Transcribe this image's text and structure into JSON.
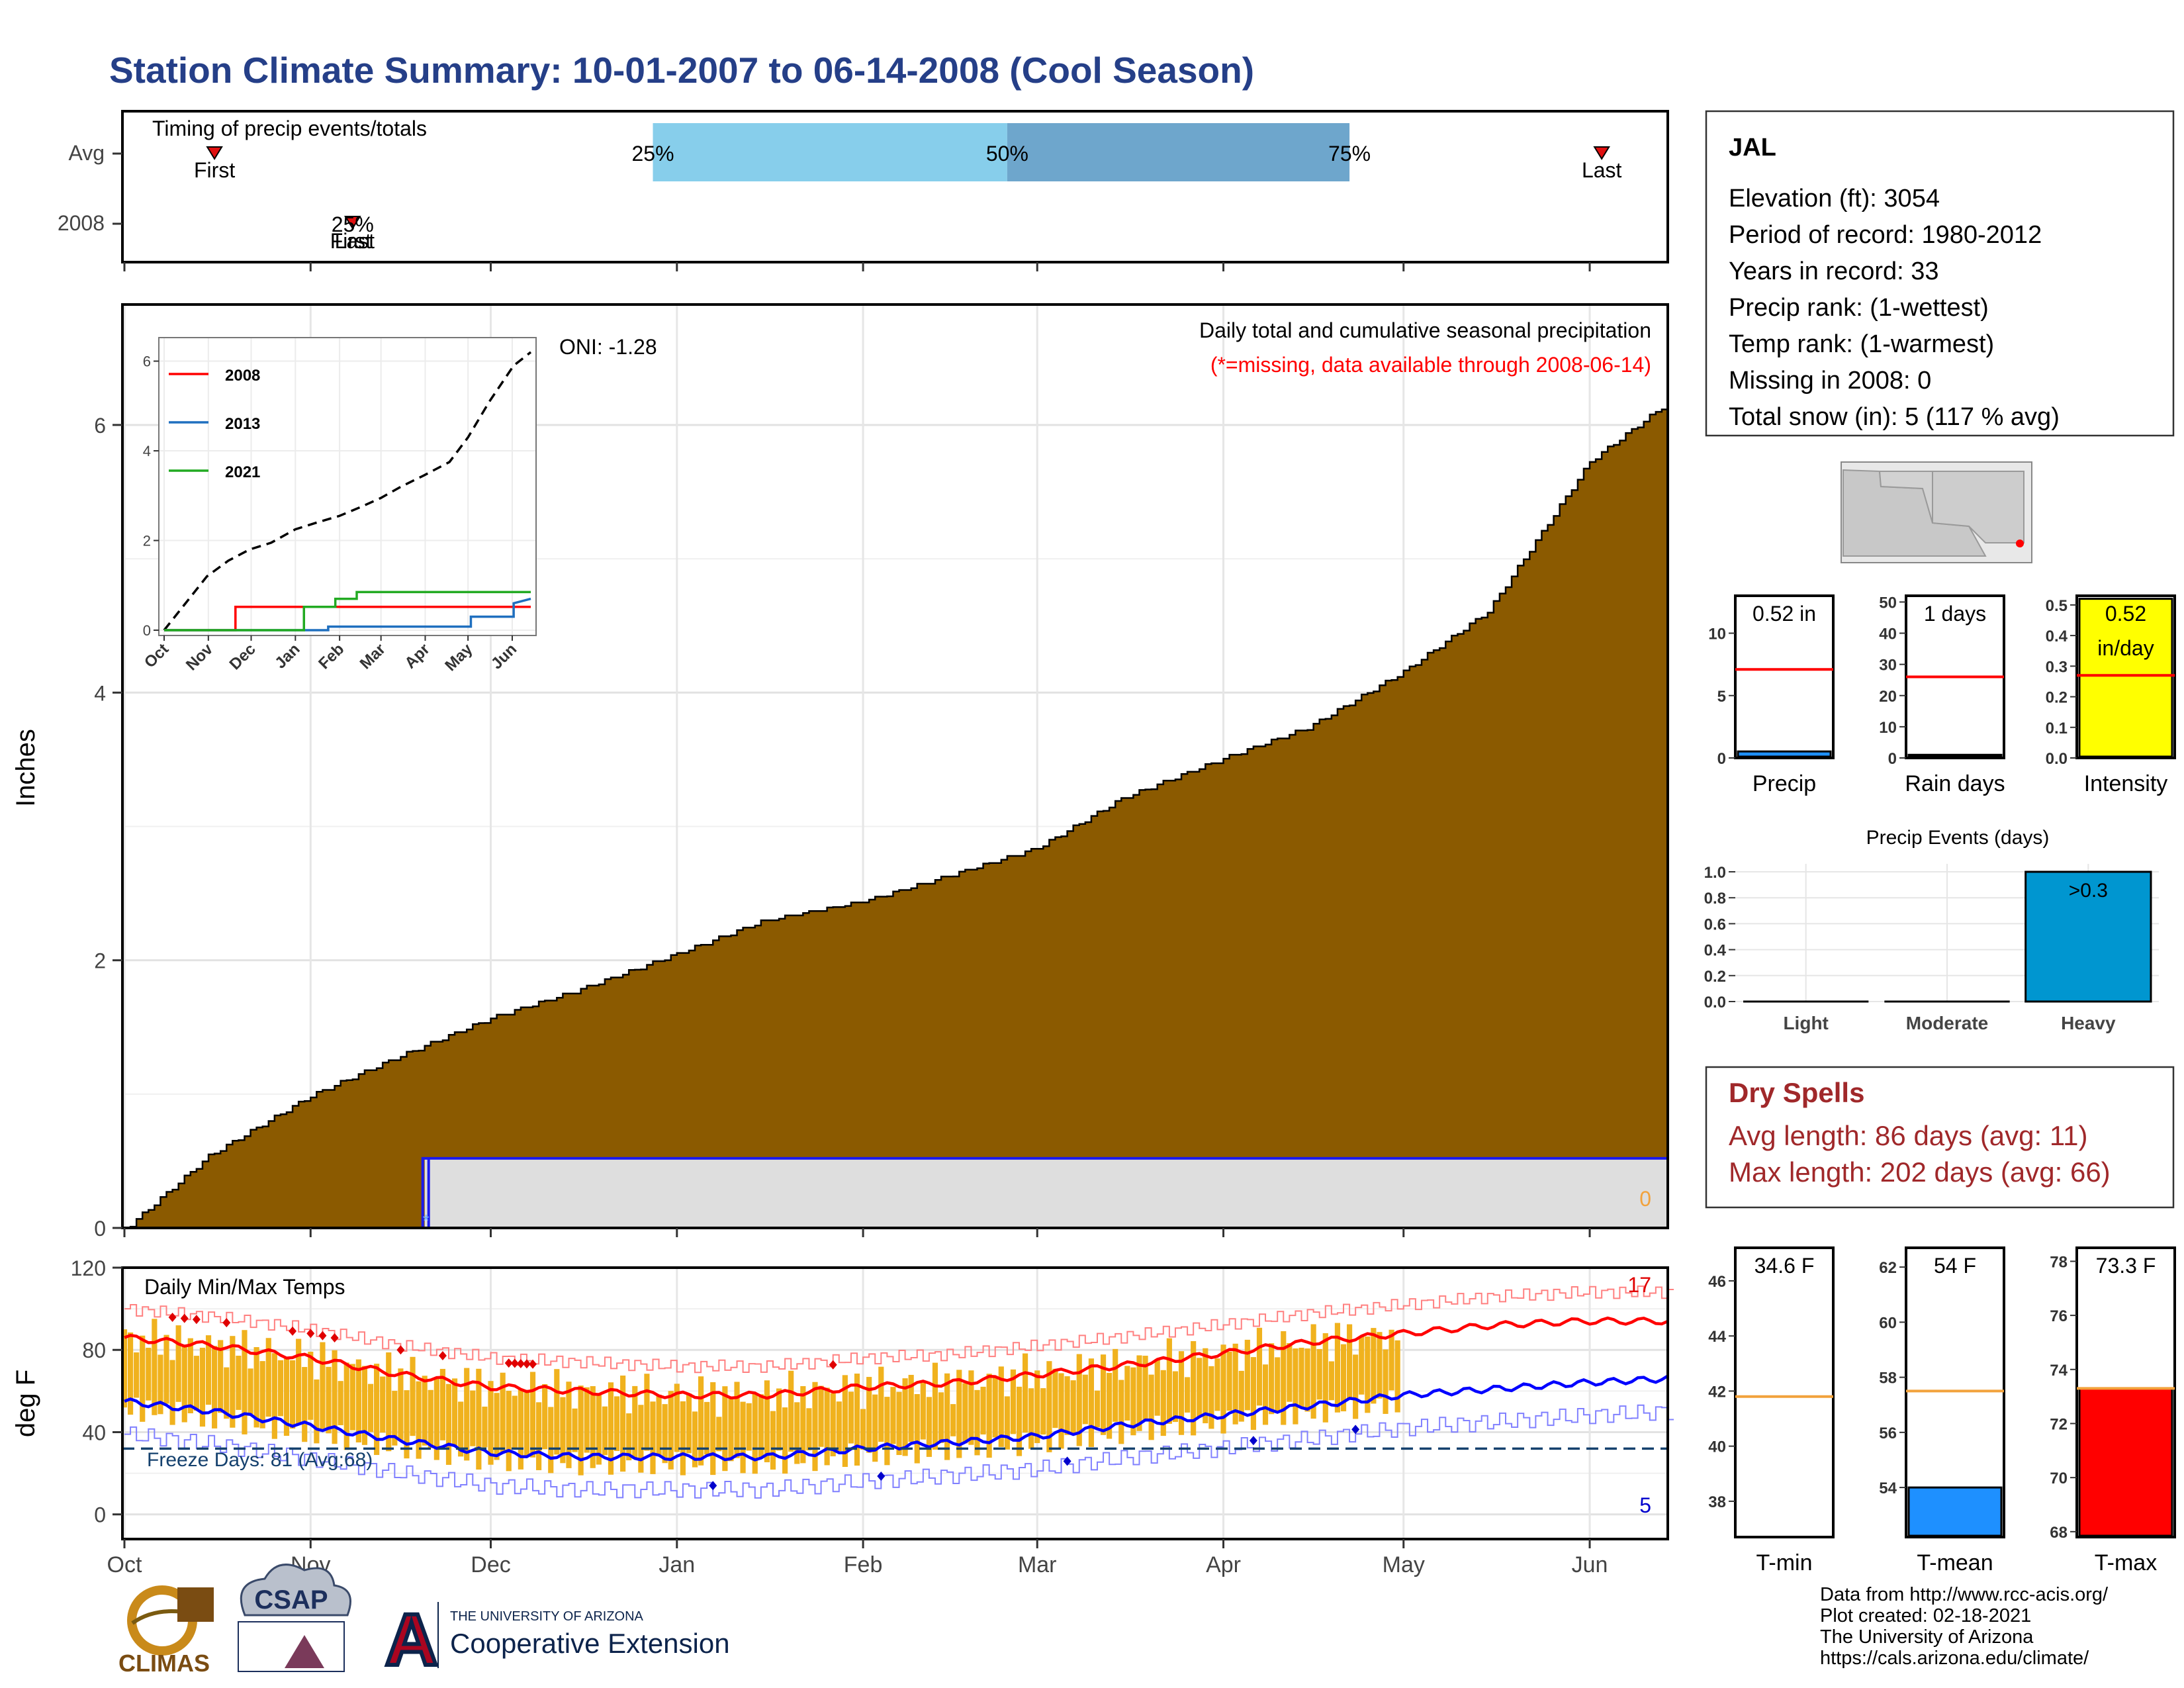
{
  "title": "Station Climate Summary: 10-01-2007 to 06-14-2008 (Cool Season)",
  "colors": {
    "title": "#253f88",
    "cum_fill": "#8b5a00",
    "q_light": "#87ceeb",
    "q_dark": "#6ea6cc",
    "yr2008": "#ff0000",
    "yr2013": "#1f6fbf",
    "yr2021": "#22aa22",
    "range_bar": "#f0b21e",
    "tmax_line": "#ff0000",
    "tmin_line": "#0000ff",
    "dry_title": "#a0282a",
    "intensity_fill": "#ffff00",
    "precip_fill": "#1e90ff",
    "events_fill": "#0096d0",
    "tmean_fill": "#1e90ff",
    "tmax_fill": "#ff0000",
    "avg_line": "#f2a23c",
    "freeze": "#15416e"
  },
  "timing": {
    "label": "Timing of precip events/totals",
    "rows": [
      "Avg",
      "2008"
    ],
    "avg_first_label": "First",
    "avg_last_label": "Last",
    "avg_first_date": "2007-10-16",
    "avg_last_date": "2008-06-03",
    "q25_label": "25%",
    "q50_label": "50%",
    "q75_label": "75%",
    "q25_date": "2007-12-28",
    "q50_date": "2008-02-25",
    "q75_date": "2008-04-22",
    "y2008_date": "2007-11-08",
    "y2008_overlap_label": "25%",
    "y2008_first_label": "First",
    "y2008_last_label": "Last"
  },
  "main": {
    "ylabel": "Inches",
    "oni": "ONI: -1.28",
    "caption": "Daily total and cumulative seasonal precipitation",
    "missing_note": "(*=missing, data available through 2008-06-14)",
    "missing_count": "0",
    "season_start": "2007-10-01",
    "season_end": "2008-06-14",
    "yticks": [
      "0",
      "2",
      "4",
      "6"
    ],
    "ylim": [
      0,
      6.9
    ],
    "month_ticks": [
      "Oct",
      "Nov",
      "Dec",
      "Jan",
      "Feb",
      "Mar",
      "Apr",
      "May",
      "Jun"
    ],
    "cumulative_avg": [
      [
        "2007-10-01",
        0
      ],
      [
        "2007-10-15",
        0.55
      ],
      [
        "2007-11-01",
        1.0
      ],
      [
        "2007-11-15",
        1.28
      ],
      [
        "2007-12-01",
        1.58
      ],
      [
        "2007-12-15",
        1.78
      ],
      [
        "2008-01-01",
        2.06
      ],
      [
        "2008-01-15",
        2.3
      ],
      [
        "2008-02-01",
        2.45
      ],
      [
        "2008-02-15",
        2.64
      ],
      [
        "2008-03-01",
        2.85
      ],
      [
        "2008-03-15",
        3.22
      ],
      [
        "2008-04-01",
        3.52
      ],
      [
        "2008-04-15",
        3.75
      ],
      [
        "2008-05-01",
        4.17
      ],
      [
        "2008-05-15",
        4.62
      ],
      [
        "2008-06-01",
        5.74
      ],
      [
        "2008-06-14",
        6.18
      ]
    ],
    "cum_2008_start": "2007-11-20",
    "cum_2008_value": 0.52
  },
  "inset": {
    "yticks": [
      "0",
      "2",
      "4",
      "6"
    ],
    "months": [
      "Oct",
      "Nov",
      "Dec",
      "Jan",
      "Feb",
      "Mar",
      "Apr",
      "May",
      "Jun"
    ],
    "legend": [
      "2008",
      "2013",
      "2021"
    ],
    "avg_curve": [
      [
        0,
        0
      ],
      [
        15,
        0.6
      ],
      [
        30,
        1.2
      ],
      [
        45,
        1.55
      ],
      [
        60,
        1.8
      ],
      [
        75,
        1.95
      ],
      [
        92,
        2.25
      ],
      [
        107,
        2.4
      ],
      [
        123,
        2.55
      ],
      [
        138,
        2.75
      ],
      [
        152,
        2.95
      ],
      [
        166,
        3.2
      ],
      [
        182,
        3.45
      ],
      [
        200,
        3.75
      ],
      [
        213,
        4.3
      ],
      [
        228,
        5.1
      ],
      [
        245,
        5.9
      ],
      [
        257,
        6.2
      ]
    ],
    "y2008": [
      [
        0,
        0
      ],
      [
        50,
        0
      ],
      [
        50,
        0.52
      ],
      [
        257,
        0.52
      ]
    ],
    "y2013": [
      [
        0,
        0
      ],
      [
        115,
        0
      ],
      [
        115,
        0.08
      ],
      [
        215,
        0.08
      ],
      [
        215,
        0.3
      ],
      [
        245,
        0.3
      ],
      [
        245,
        0.6
      ],
      [
        257,
        0.7
      ]
    ],
    "y2021": [
      [
        0,
        0
      ],
      [
        98,
        0
      ],
      [
        98,
        0.52
      ],
      [
        120,
        0.52
      ],
      [
        120,
        0.7
      ],
      [
        135,
        0.7
      ],
      [
        135,
        0.85
      ],
      [
        257,
        0.85
      ]
    ]
  },
  "temps": {
    "ylabel": "deg F",
    "label": "Daily Min/Max Temps",
    "freeze_label": "Freeze Days: 81 (Avg:68)",
    "freeze_line": 32,
    "max_record_count": "17",
    "min_record_count": "5",
    "yticks": [
      "0",
      "40",
      "80",
      "120"
    ],
    "ylim": [
      -12,
      120
    ],
    "data_end": "2008-04-30",
    "avg_tmax": [
      [
        0,
        86
      ],
      [
        15,
        82
      ],
      [
        31,
        76
      ],
      [
        46,
        68
      ],
      [
        61,
        62
      ],
      [
        76,
        60
      ],
      [
        92,
        58
      ],
      [
        107,
        58
      ],
      [
        123,
        62
      ],
      [
        138,
        64
      ],
      [
        152,
        68
      ],
      [
        168,
        73
      ],
      [
        182,
        78
      ],
      [
        198,
        84
      ],
      [
        213,
        88
      ],
      [
        228,
        92
      ],
      [
        243,
        94
      ],
      [
        257,
        94
      ]
    ],
    "avg_tmin": [
      [
        0,
        55
      ],
      [
        15,
        50
      ],
      [
        31,
        43
      ],
      [
        46,
        36
      ],
      [
        61,
        30
      ],
      [
        76,
        28
      ],
      [
        92,
        28
      ],
      [
        107,
        28
      ],
      [
        123,
        32
      ],
      [
        138,
        35
      ],
      [
        152,
        38
      ],
      [
        168,
        44
      ],
      [
        182,
        48
      ],
      [
        198,
        53
      ],
      [
        213,
        58
      ],
      [
        228,
        61
      ],
      [
        243,
        64
      ],
      [
        257,
        66
      ]
    ]
  },
  "info": {
    "station": "JAL",
    "lines": [
      "Elevation (ft): 3054",
      "Period of record: 1980-2012",
      "Years in record: 33",
      "Precip rank:  (1-wettest)",
      "Temp rank:  (1-warmest)",
      "Missing in 2008: 0",
      "Total snow (in): 5 (117 % avg)"
    ]
  },
  "mini": {
    "precip": {
      "label": "Precip",
      "value_label": "0.52 in",
      "value": 0.52,
      "avg": 7.1,
      "yticks": [
        "0",
        "5",
        "10"
      ],
      "ymax": 13
    },
    "raindays": {
      "label": "Rain days",
      "value_label": "1 days",
      "value": 1,
      "avg": 26,
      "yticks": [
        "0",
        "10",
        "20",
        "30",
        "40",
        "50"
      ],
      "ymax": 52
    },
    "intensity": {
      "label": "Intensity",
      "value_label1": "0.52",
      "value_label2": "in/day",
      "value": 0.52,
      "avg": 0.27,
      "yticks": [
        "0.0",
        "0.1",
        "0.2",
        "0.3",
        "0.4",
        "0.5"
      ],
      "ymax": 0.53
    }
  },
  "events": {
    "title": "Precip Events (days)",
    "categories": [
      "Light",
      "Moderate",
      "Heavy"
    ],
    "values": [
      0,
      0,
      1
    ],
    "top_label": ">0.3",
    "yticks": [
      "0.0",
      "0.2",
      "0.4",
      "0.6",
      "0.8",
      "1.0"
    ]
  },
  "dry": {
    "title": "Dry Spells",
    "avg_line": "Avg length: 86 days (avg: 11)",
    "max_line": "Max length: 202 days (avg: 66)"
  },
  "tbars": {
    "tmin": {
      "label": "T-min",
      "value_label": "34.6 F",
      "value": 34.6,
      "avg": 41.8,
      "yticks": [
        "38",
        "40",
        "42",
        "44",
        "46"
      ],
      "ymin": 36.7,
      "ymax": 47.2
    },
    "tmean": {
      "label": "T-mean",
      "value_label": "54 F",
      "value": 54,
      "avg": 57.5,
      "yticks": [
        "54",
        "56",
        "58",
        "60",
        "62"
      ],
      "ymin": 52.2,
      "ymax": 62.7
    },
    "tmax": {
      "label": "T-max",
      "value_label": "73.3 F",
      "value": 73.3,
      "avg": 73.3,
      "yticks": [
        "68",
        "70",
        "72",
        "74",
        "76",
        "78"
      ],
      "ymin": 67.8,
      "ymax": 78.5
    }
  },
  "footer": {
    "lines": [
      "Data from http://www.rcc-acis.org/",
      "Plot created: 02-18-2021",
      "The University of Arizona",
      "https://cals.arizona.edu/climate/"
    ],
    "logo_climas": "CLIMAS",
    "logo_csap": "CSAP",
    "ua_small": "THE UNIVERSITY OF ARIZONA",
    "ua_big": "Cooperative Extension"
  }
}
